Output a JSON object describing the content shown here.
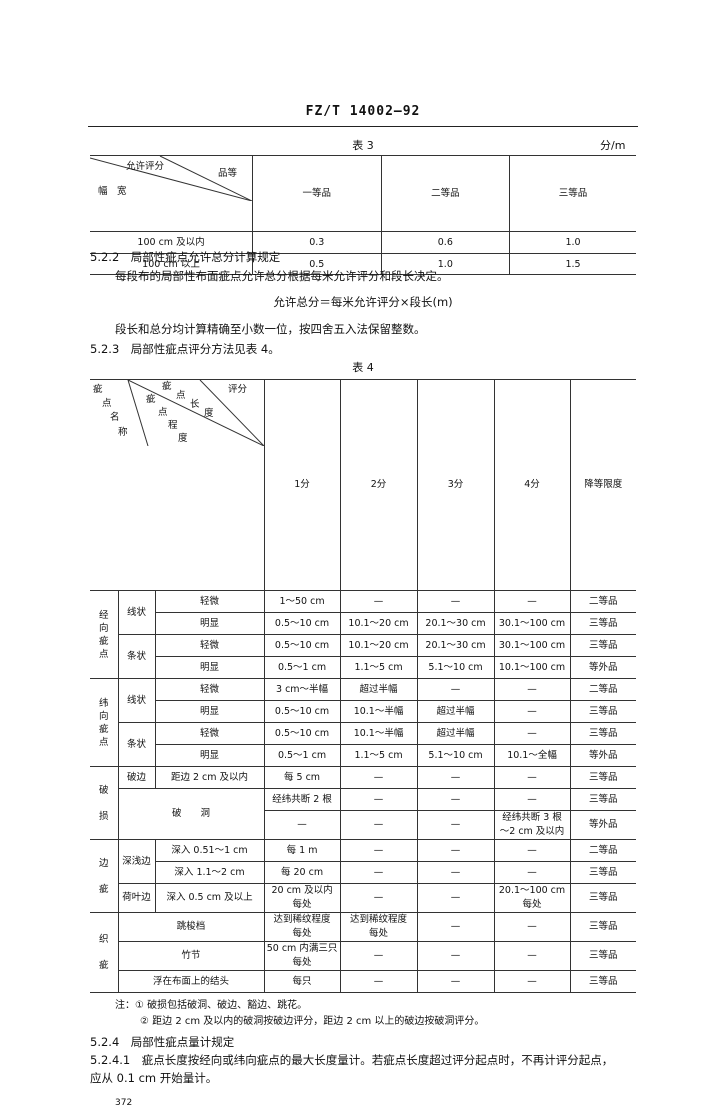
{
  "header": {
    "standard_no": "FZ/T 14002—92"
  },
  "table3": {
    "caption": "表 3",
    "unit": "分/m",
    "diag": {
      "top": "允许评分",
      "right": "品等",
      "bottom": "幅　宽"
    },
    "columns": [
      "一等品",
      "二等品",
      "三等品"
    ],
    "rows": [
      {
        "width": "100 cm 及以内",
        "values": [
          "0.3",
          "0.6",
          "1.0"
        ]
      },
      {
        "width": "100 cm 以上",
        "values": [
          "0.5",
          "1.0",
          "1.5"
        ]
      }
    ]
  },
  "section_522": {
    "heading": "5.2.2　局部性疵点允许总分计算规定",
    "para1": "每段布的局部性布面疵点允许总分根据每米允许评分和段长决定。",
    "formula": "允许总分＝每米允许评分×段长(m)",
    "para2": "段长和总分均计算精确至小数一位，按四舍五入法保留整数。"
  },
  "section_523": {
    "heading": "5.2.3　局部性疵点评分方法见表 4。"
  },
  "table4": {
    "caption": "表 4",
    "diag": {
      "c1": "疵",
      "c2": "点",
      "c3": "名",
      "c4": "称",
      "d1": "疵",
      "d2": "点",
      "d3": "程",
      "d4": "度",
      "l1": "疵",
      "l2": "点",
      "l3": "长",
      "l4": "度",
      "score": "评分"
    },
    "columns": [
      "1分",
      "2分",
      "3分",
      "4分",
      "降等限度"
    ],
    "groups": [
      {
        "label": "经\n向\n疵\n点",
        "subs": [
          {
            "label": "线状",
            "rows": [
              {
                "degree": "轻微",
                "values": [
                  "1～50 cm",
                  "—",
                  "—",
                  "—",
                  "二等品"
                ]
              },
              {
                "degree": "明显",
                "values": [
                  "0.5～10 cm",
                  "10.1～20 cm",
                  "20.1～30 cm",
                  "30.1～100 cm",
                  "三等品"
                ]
              }
            ]
          },
          {
            "label": "条状",
            "rows": [
              {
                "degree": "轻微",
                "values": [
                  "0.5～10 cm",
                  "10.1～20 cm",
                  "20.1～30 cm",
                  "30.1～100 cm",
                  "三等品"
                ]
              },
              {
                "degree": "明显",
                "values": [
                  "0.5～1 cm",
                  "1.1～5 cm",
                  "5.1～10 cm",
                  "10.1～100 cm",
                  "等外品"
                ]
              }
            ]
          }
        ]
      },
      {
        "label": "纬\n向\n疵\n点",
        "subs": [
          {
            "label": "线状",
            "rows": [
              {
                "degree": "轻微",
                "values": [
                  "3 cm～半幅",
                  "超过半幅",
                  "—",
                  "—",
                  "二等品"
                ]
              },
              {
                "degree": "明显",
                "values": [
                  "0.5～10 cm",
                  "10.1～半幅",
                  "超过半幅",
                  "—",
                  "三等品"
                ]
              }
            ]
          },
          {
            "label": "条状",
            "rows": [
              {
                "degree": "轻微",
                "values": [
                  "0.5～10 cm",
                  "10.1～半幅",
                  "超过半幅",
                  "—",
                  "三等品"
                ]
              },
              {
                "degree": "明显",
                "values": [
                  "0.5～1 cm",
                  "1.1～5 cm",
                  "5.1～10 cm",
                  "10.1～全幅",
                  "等外品"
                ]
              }
            ]
          }
        ]
      },
      {
        "label": "破\n\n损",
        "subs": [
          {
            "label": "破边",
            "rows": [
              {
                "degree": "距边 2 cm 及以内",
                "values": [
                  "每 5 cm",
                  "—",
                  "—",
                  "—",
                  "三等品"
                ]
              }
            ]
          },
          {
            "label": "破　　洞",
            "rows": [
              {
                "values": [
                  "经纬共断 2 根",
                  "—",
                  "—",
                  "—",
                  "三等品"
                ]
              },
              {
                "values": [
                  "—",
                  "—",
                  "—",
                  "经纬共断 3 根\n～2 cm 及以内",
                  "等外品"
                ]
              }
            ]
          }
        ]
      },
      {
        "label": "边\n\n疵",
        "subs": [
          {
            "label": "深浅边",
            "rows": [
              {
                "degree": "深入 0.51～1 cm",
                "values": [
                  "每 1 m",
                  "—",
                  "—",
                  "—",
                  "二等品"
                ]
              },
              {
                "degree": "深入 1.1～2 cm",
                "values": [
                  "每 20 cm",
                  "—",
                  "—",
                  "—",
                  "三等品"
                ]
              }
            ]
          },
          {
            "label": "荷叶边",
            "rows": [
              {
                "degree": "深入 0.5 cm 及以上",
                "values": [
                  "20 cm 及以内\n每处",
                  "—",
                  "—",
                  "20.1～100 cm\n每处",
                  "三等品"
                ]
              }
            ]
          }
        ]
      },
      {
        "label": "织\n\n疵",
        "subs": [
          {
            "label": "跳梭档",
            "rows": [
              {
                "values": [
                  "达到稀纹程度\n每处",
                  "达到稀纹程度\n每处",
                  "—",
                  "—",
                  "三等品"
                ]
              }
            ]
          },
          {
            "label": "竹节",
            "rows": [
              {
                "values": [
                  "50 cm 内满三只\n每处",
                  "—",
                  "—",
                  "—",
                  "三等品"
                ]
              }
            ]
          },
          {
            "label": "浮在布面上的结头",
            "rows": [
              {
                "values": [
                  "每只",
                  "—",
                  "—",
                  "—",
                  "三等品"
                ]
              }
            ]
          }
        ]
      }
    ]
  },
  "notes": {
    "note1": "注：① 破损包括破洞、破边、豁边、跳花。",
    "note2": "② 距边 2 cm 及以内的破洞按破边评分，距边 2 cm 以上的破边按破洞评分。"
  },
  "section_524": {
    "heading": "5.2.4　局部性疵点量计规定",
    "p1_line1": "5.2.4.1　疵点长度按经向或纬向疵点的最大长度量计。若疵点长度超过评分起点时，不再计评分起点，",
    "p1_line2": "应从 0.1 cm 开始量计。"
  },
  "page_number": "372"
}
